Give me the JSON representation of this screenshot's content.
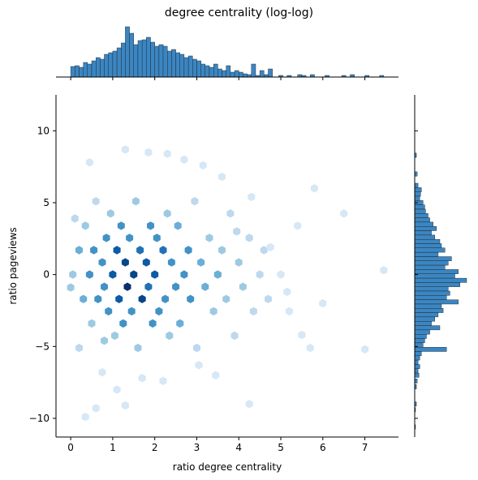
{
  "chart_data": {
    "type": "hexbin",
    "title": "degree centrality (log-log)",
    "xlabel": "ratio degree centrality",
    "ylabel": "ratio pageviews",
    "xlim": [
      -0.35,
      7.8
    ],
    "ylim": [
      -11.3,
      12.5
    ],
    "xticks": [
      0,
      1,
      2,
      3,
      4,
      5,
      6,
      7
    ],
    "yticks": [
      -10,
      -5,
      0,
      5,
      10
    ],
    "grid": false,
    "marginals": {
      "top": "histogram of x",
      "right": "histogram of y"
    },
    "colors": {
      "hex_light": "#eaf3fb",
      "hex_mid": "#5aa5dc",
      "hex_dark": "#08306b",
      "hist_fill": "#3b86c2",
      "hist_edge": "#1a1a1a"
    },
    "hexbin_points": [
      [
        0.05,
        0.0,
        3
      ],
      [
        0.2,
        1.7,
        4
      ],
      [
        0.3,
        -1.7,
        4
      ],
      [
        0.35,
        3.4,
        3
      ],
      [
        0.45,
        0.0,
        6
      ],
      [
        0.5,
        -3.4,
        3
      ],
      [
        0.55,
        1.7,
        5
      ],
      [
        0.6,
        5.1,
        2
      ],
      [
        0.65,
        -1.7,
        5
      ],
      [
        0.75,
        0.85,
        6
      ],
      [
        0.8,
        -0.85,
        6
      ],
      [
        0.85,
        2.55,
        5
      ],
      [
        0.9,
        -2.55,
        5
      ],
      [
        0.95,
        4.25,
        3
      ],
      [
        1.0,
        0.0,
        8
      ],
      [
        1.05,
        -4.25,
        3
      ],
      [
        1.1,
        1.7,
        8
      ],
      [
        1.15,
        -1.7,
        8
      ],
      [
        1.2,
        3.4,
        5
      ],
      [
        1.25,
        -3.4,
        5
      ],
      [
        1.3,
        0.85,
        9
      ],
      [
        1.35,
        -0.85,
        10
      ],
      [
        1.4,
        2.55,
        6
      ],
      [
        1.45,
        -2.55,
        6
      ],
      [
        1.5,
        0.0,
        9
      ],
      [
        1.55,
        5.1,
        3
      ],
      [
        1.6,
        -5.1,
        3
      ],
      [
        1.65,
        1.7,
        7
      ],
      [
        1.7,
        -1.7,
        9
      ],
      [
        1.8,
        0.85,
        8
      ],
      [
        1.85,
        -0.85,
        7
      ],
      [
        1.9,
        3.4,
        5
      ],
      [
        1.95,
        -3.4,
        5
      ],
      [
        2.0,
        0.0,
        8
      ],
      [
        2.05,
        2.55,
        5
      ],
      [
        2.1,
        -2.55,
        6
      ],
      [
        2.2,
        1.7,
        7
      ],
      [
        2.25,
        -1.7,
        6
      ],
      [
        2.3,
        4.25,
        3
      ],
      [
        2.35,
        -4.25,
        3
      ],
      [
        2.4,
        0.85,
        6
      ],
      [
        2.5,
        -0.85,
        6
      ],
      [
        2.55,
        3.4,
        4
      ],
      [
        2.6,
        -3.4,
        4
      ],
      [
        2.7,
        0.0,
        5
      ],
      [
        2.8,
        1.7,
        5
      ],
      [
        2.85,
        -1.7,
        5
      ],
      [
        2.95,
        5.1,
        2
      ],
      [
        3.0,
        -5.1,
        2
      ],
      [
        3.1,
        0.85,
        4
      ],
      [
        3.2,
        -0.85,
        4
      ],
      [
        3.3,
        2.55,
        3
      ],
      [
        3.4,
        -2.55,
        3
      ],
      [
        3.5,
        0.0,
        4
      ],
      [
        3.6,
        1.7,
        3
      ],
      [
        3.7,
        -1.7,
        3
      ],
      [
        3.8,
        4.25,
        2
      ],
      [
        3.9,
        -4.25,
        2
      ],
      [
        4.0,
        0.85,
        3
      ],
      [
        4.1,
        -0.85,
        3
      ],
      [
        4.25,
        2.55,
        2
      ],
      [
        4.35,
        -2.55,
        2
      ],
      [
        4.5,
        0.0,
        2
      ],
      [
        4.6,
        1.7,
        2
      ],
      [
        4.7,
        -1.7,
        2
      ],
      [
        5.0,
        0.0,
        1
      ],
      [
        5.2,
        -2.55,
        1
      ],
      [
        5.4,
        3.4,
        1
      ],
      [
        6.5,
        4.25,
        1
      ],
      [
        7.45,
        0.3,
        1
      ],
      [
        1.3,
        -9.1,
        1
      ],
      [
        1.7,
        -7.2,
        1
      ],
      [
        2.2,
        -7.4,
        1
      ],
      [
        4.25,
        -9.0,
        1
      ],
      [
        0.35,
        -9.9,
        1
      ],
      [
        0.6,
        -9.3,
        1
      ],
      [
        0.75,
        -6.8,
        1
      ],
      [
        1.1,
        -8.0,
        1
      ],
      [
        3.05,
        -6.3,
        1
      ],
      [
        3.45,
        -7.0,
        1
      ],
      [
        1.85,
        8.5,
        1
      ],
      [
        2.3,
        8.4,
        1
      ],
      [
        1.3,
        8.7,
        1
      ],
      [
        2.7,
        8.0,
        1
      ],
      [
        3.15,
        7.6,
        1
      ],
      [
        0.45,
        7.8,
        1
      ],
      [
        3.6,
        6.8,
        1
      ],
      [
        5.8,
        6.0,
        1
      ],
      [
        6.0,
        -2.0,
        1
      ],
      [
        5.5,
        -4.2,
        1
      ],
      [
        0.2,
        -5.1,
        2
      ],
      [
        0.1,
        3.9,
        2
      ],
      [
        0.0,
        -0.9,
        3
      ],
      [
        4.75,
        1.9,
        1
      ],
      [
        5.15,
        -1.2,
        1
      ],
      [
        7.0,
        -5.2,
        1
      ],
      [
        5.7,
        -5.1,
        1
      ],
      [
        4.3,
        5.4,
        1
      ],
      [
        0.8,
        -4.6,
        3
      ],
      [
        3.95,
        3.0,
        2
      ]
    ],
    "x_hist": [
      [
        0.05,
        13
      ],
      [
        0.15,
        14
      ],
      [
        0.25,
        12
      ],
      [
        0.35,
        18
      ],
      [
        0.45,
        16
      ],
      [
        0.55,
        20
      ],
      [
        0.65,
        24
      ],
      [
        0.75,
        22
      ],
      [
        0.85,
        28
      ],
      [
        0.95,
        30
      ],
      [
        1.05,
        32
      ],
      [
        1.15,
        36
      ],
      [
        1.25,
        42
      ],
      [
        1.35,
        62
      ],
      [
        1.45,
        54
      ],
      [
        1.55,
        40
      ],
      [
        1.65,
        45
      ],
      [
        1.75,
        46
      ],
      [
        1.85,
        49
      ],
      [
        1.95,
        43
      ],
      [
        2.05,
        38
      ],
      [
        2.15,
        40
      ],
      [
        2.25,
        38
      ],
      [
        2.35,
        32
      ],
      [
        2.45,
        34
      ],
      [
        2.55,
        30
      ],
      [
        2.65,
        28
      ],
      [
        2.75,
        24
      ],
      [
        2.85,
        26
      ],
      [
        2.95,
        22
      ],
      [
        3.05,
        20
      ],
      [
        3.15,
        16
      ],
      [
        3.25,
        14
      ],
      [
        3.35,
        12
      ],
      [
        3.45,
        16
      ],
      [
        3.55,
        10
      ],
      [
        3.65,
        8
      ],
      [
        3.75,
        14
      ],
      [
        3.85,
        6
      ],
      [
        3.95,
        8
      ],
      [
        4.05,
        6
      ],
      [
        4.15,
        4
      ],
      [
        4.25,
        3
      ],
      [
        4.35,
        16
      ],
      [
        4.45,
        2
      ],
      [
        4.55,
        8
      ],
      [
        4.65,
        3
      ],
      [
        4.75,
        10
      ],
      [
        5.0,
        2
      ],
      [
        5.2,
        2
      ],
      [
        5.45,
        3
      ],
      [
        5.55,
        2
      ],
      [
        5.75,
        3
      ],
      [
        6.1,
        2
      ],
      [
        6.5,
        2
      ],
      [
        6.7,
        3
      ],
      [
        7.05,
        2
      ],
      [
        7.4,
        2
      ]
    ],
    "y_hist": [
      [
        8.3,
        2
      ],
      [
        7.0,
        3
      ],
      [
        6.2,
        4
      ],
      [
        5.9,
        8
      ],
      [
        5.6,
        7
      ],
      [
        5.3,
        6
      ],
      [
        5.0,
        10
      ],
      [
        4.7,
        12
      ],
      [
        4.4,
        13
      ],
      [
        4.1,
        16
      ],
      [
        3.8,
        18
      ],
      [
        3.5,
        22
      ],
      [
        3.2,
        26
      ],
      [
        2.9,
        20
      ],
      [
        2.6,
        24
      ],
      [
        2.3,
        30
      ],
      [
        2.0,
        32
      ],
      [
        1.7,
        36
      ],
      [
        1.4,
        28
      ],
      [
        1.1,
        44
      ],
      [
        0.8,
        40
      ],
      [
        0.5,
        36
      ],
      [
        0.2,
        52
      ],
      [
        -0.1,
        48
      ],
      [
        -0.4,
        62
      ],
      [
        -0.7,
        54
      ],
      [
        -1.0,
        40
      ],
      [
        -1.3,
        42
      ],
      [
        -1.6,
        38
      ],
      [
        -1.9,
        52
      ],
      [
        -2.2,
        32
      ],
      [
        -2.5,
        34
      ],
      [
        -2.8,
        28
      ],
      [
        -3.1,
        24
      ],
      [
        -3.4,
        20
      ],
      [
        -3.7,
        30
      ],
      [
        -4.0,
        18
      ],
      [
        -4.3,
        14
      ],
      [
        -4.6,
        12
      ],
      [
        -4.9,
        10
      ],
      [
        -5.2,
        38
      ],
      [
        -5.5,
        8
      ],
      [
        -5.8,
        6
      ],
      [
        -6.1,
        4
      ],
      [
        -6.4,
        6
      ],
      [
        -6.7,
        4
      ],
      [
        -7.0,
        5
      ],
      [
        -7.4,
        3
      ],
      [
        -7.8,
        2
      ],
      [
        -9.0,
        2
      ],
      [
        -9.4,
        1
      ],
      [
        -10.6,
        1
      ]
    ]
  }
}
